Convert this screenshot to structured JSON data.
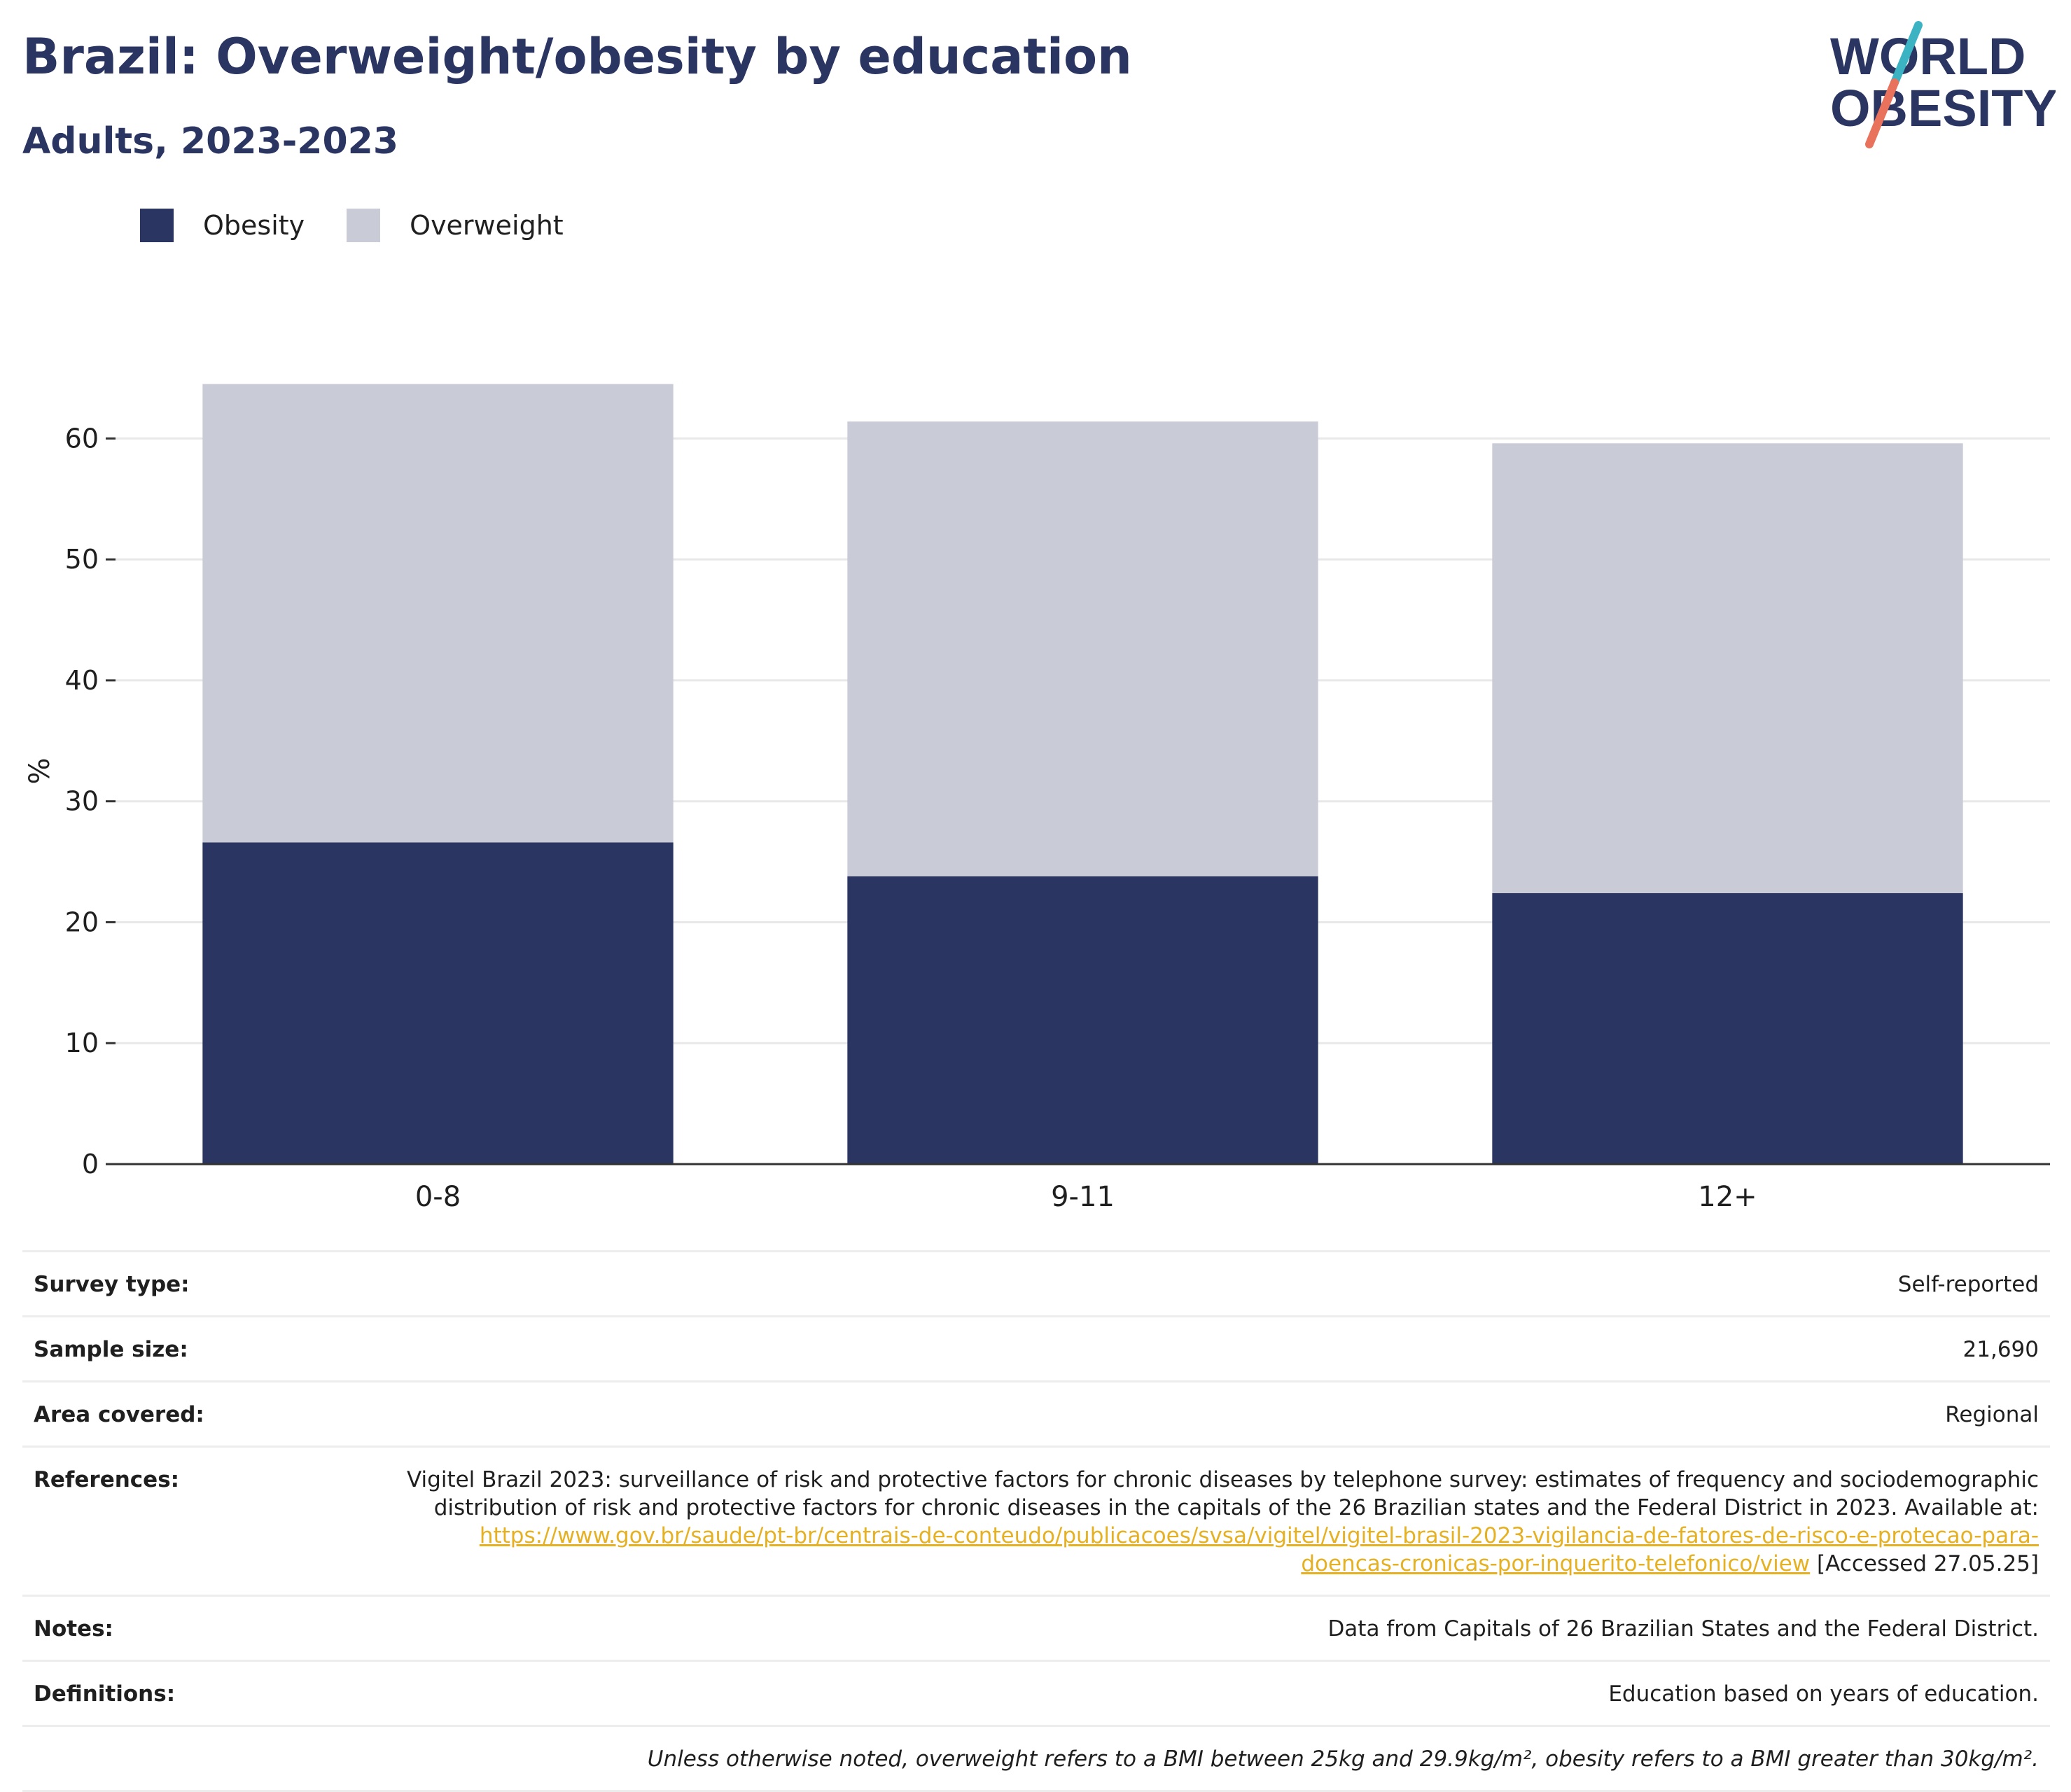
{
  "header": {
    "title": "Brazil: Overweight/obesity by education",
    "subtitle": "Adults, 2023-2023"
  },
  "logo": {
    "line1": "WORLD",
    "line2": "OBESITY",
    "colors": {
      "text": "#2a3562",
      "teal": "#3bb3c3",
      "coral": "#e8725c"
    }
  },
  "colors": {
    "obesity": "#2a3562",
    "overweight": "#c9cbd6",
    "grid": "#e8e8e8",
    "axis": "#333333",
    "link": "#e5b123",
    "title": "#2a3562"
  },
  "chart_data": {
    "type": "bar",
    "stacked": true,
    "categories": [
      "0-8",
      "9-11",
      "12+"
    ],
    "series": [
      {
        "name": "Obesity",
        "values": [
          26.6,
          23.8,
          22.4
        ]
      },
      {
        "name": "Overweight",
        "values": [
          37.9,
          37.6,
          37.2
        ]
      }
    ],
    "ylabel": "%",
    "xlabel": "",
    "ylim": [
      0,
      65
    ],
    "yticks": [
      0,
      10,
      20,
      30,
      40,
      50,
      60
    ],
    "grid": true,
    "legend_position": "top-left"
  },
  "meta": {
    "survey_type": {
      "label": "Survey type:",
      "value": "Self-reported"
    },
    "sample_size": {
      "label": "Sample size:",
      "value": "21,690"
    },
    "area_covered": {
      "label": "Area covered:",
      "value": "Regional"
    },
    "references": {
      "label": "References:",
      "text": "Vigitel Brazil 2023: surveillance of risk and protective factors for chronic diseases by telephone survey: estimates of frequency and sociodemographic distribution of risk and protective factors for chronic diseases in the capitals of the 26 Brazilian states and the Federal District in 2023. Available at: ",
      "link": "https://www.gov.br/saude/pt-br/centrais-de-conteudo/publicacoes/svsa/vigitel/vigitel-brasil-2023-vigilancia-de-fatores-de-risco-e-protecao-para-doencas-cronicas-por-inquerito-telefonico/view",
      "accessed": " [Accessed 27.05.25]"
    },
    "notes": {
      "label": "Notes:",
      "value": "Data from Capitals of 26 Brazilian States and the Federal District."
    },
    "definitions": {
      "label": "Definitions:",
      "value": "Education based on years of education."
    },
    "footnote": "Unless otherwise noted, overweight refers to a BMI between 25kg and 29.9kg/m², obesity refers to a BMI greater than 30kg/m²."
  }
}
